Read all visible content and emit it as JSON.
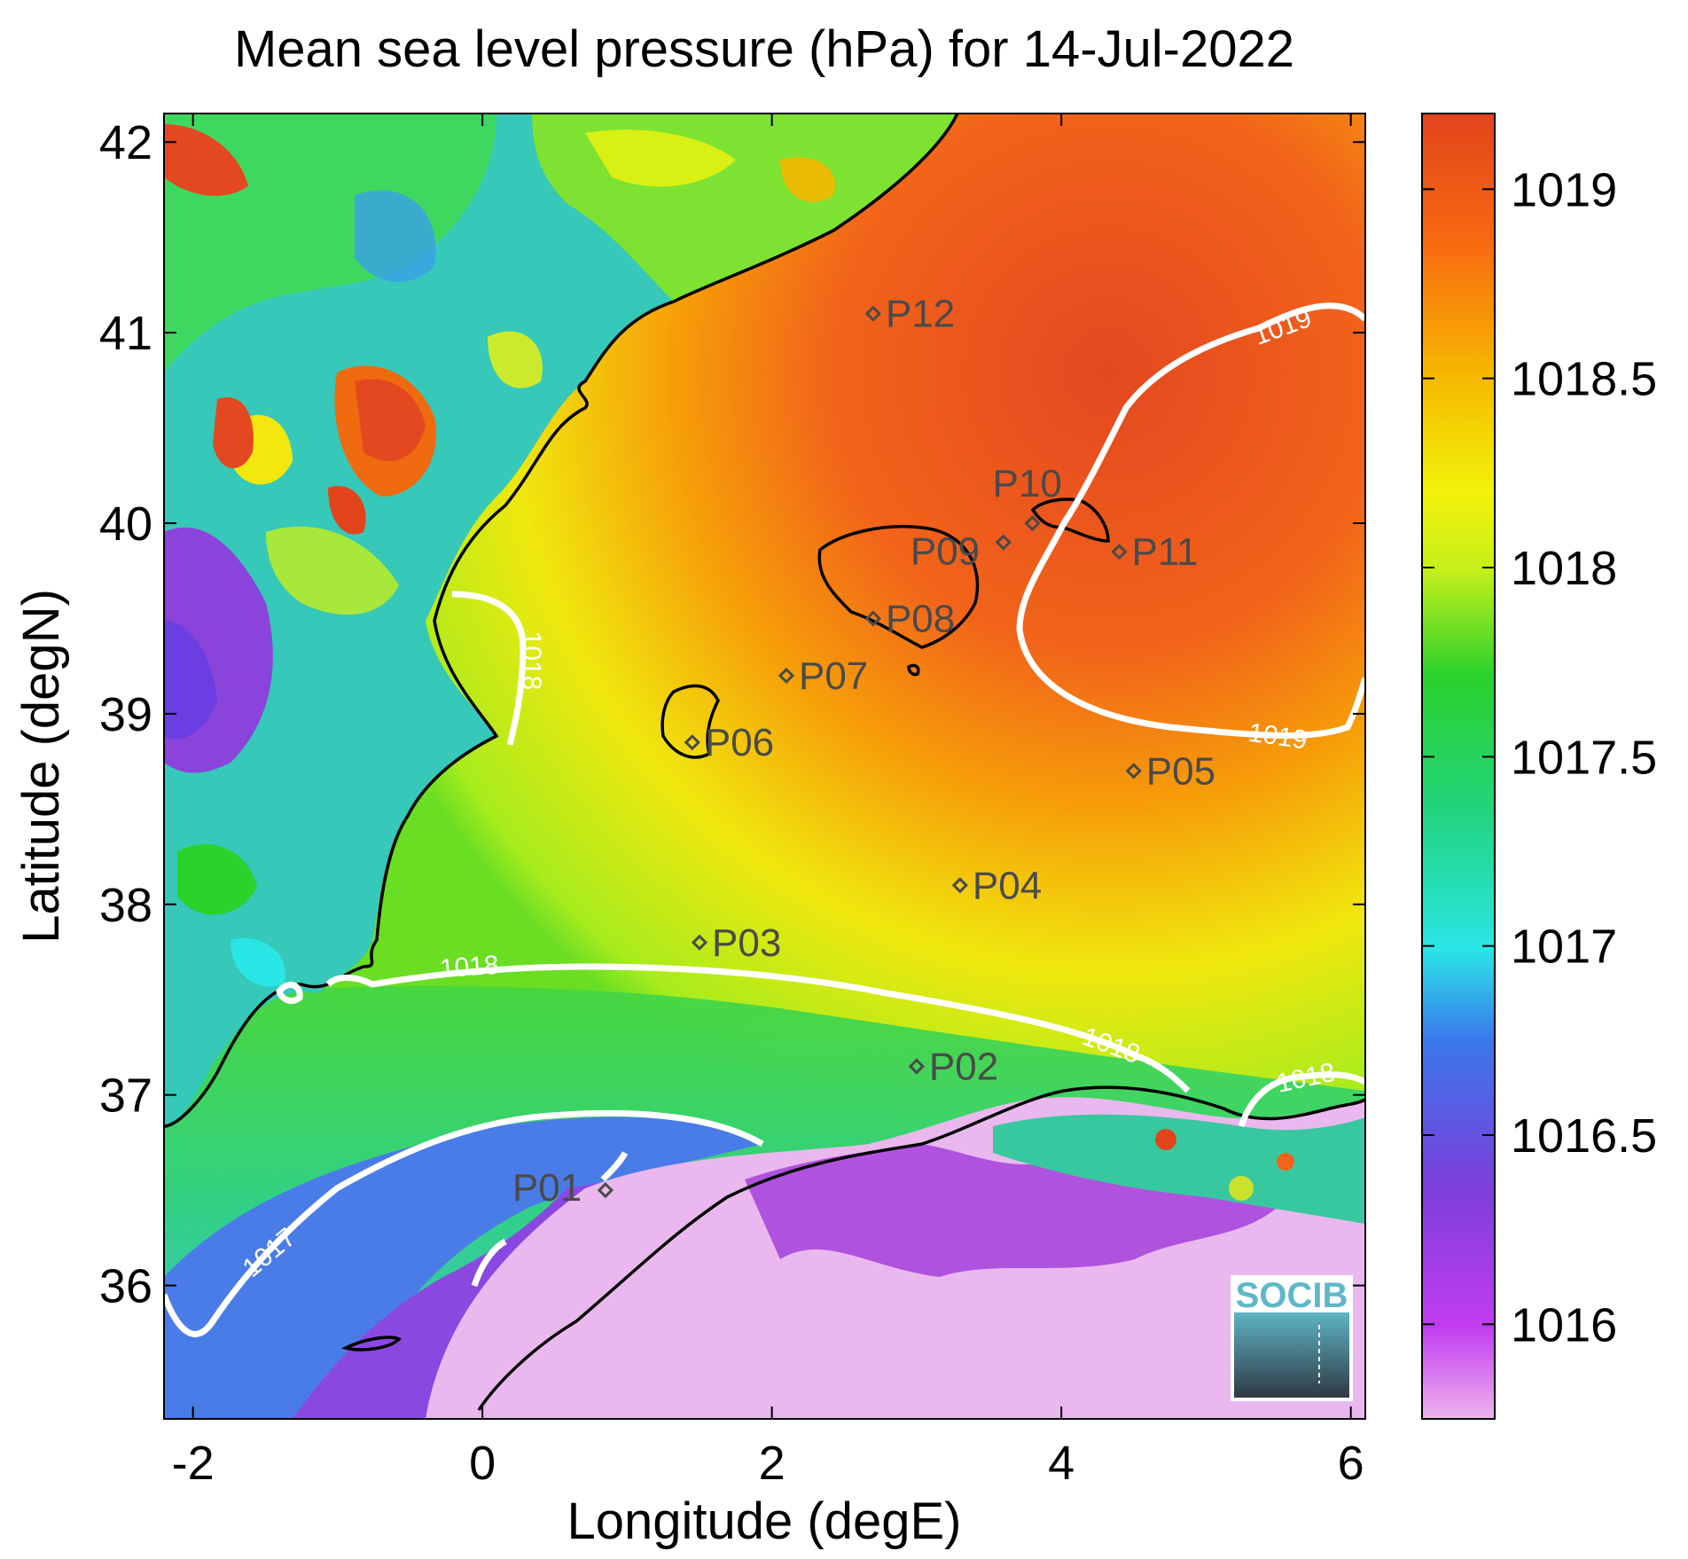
{
  "title": "Mean sea level pressure (hPa) for 14-Jul-2022",
  "x_axis": {
    "label": "Longitude (degE)",
    "ticks": [
      -2,
      0,
      2,
      4,
      6
    ],
    "tick_labels": [
      "-2",
      "0",
      "2",
      "4",
      "6"
    ],
    "range": [
      -2.2,
      6.1
    ]
  },
  "y_axis": {
    "label": "Latitude (degN)",
    "ticks": [
      36,
      37,
      38,
      39,
      40,
      41,
      42
    ],
    "tick_labels": [
      "36",
      "37",
      "38",
      "39",
      "40",
      "41",
      "42"
    ],
    "range": [
      35.3,
      42.15
    ]
  },
  "colorbar": {
    "ticks": [
      1016,
      1016.5,
      1017,
      1017.5,
      1018,
      1018.5,
      1019
    ],
    "tick_labels": [
      "1016",
      "1016.5",
      "1017",
      "1017.5",
      "1018",
      "1018.5",
      "1019"
    ],
    "range": [
      1015.75,
      1019.2
    ],
    "colors": [
      "#eeb4ee",
      "#c23cf0",
      "#7a3fdc",
      "#3a78ec",
      "#2ae6e6",
      "#22d478",
      "#2ad22a",
      "#c4f01a",
      "#f2f20a",
      "#f6b800",
      "#f86a10",
      "#e2441c"
    ]
  },
  "chart_data": {
    "type": "heatmap",
    "variable": "Mean sea level pressure",
    "units": "hPa",
    "date": "14-Jul-2022",
    "contour_levels": [
      "1017",
      "1018",
      "1019"
    ],
    "stations": [
      {
        "name": "P01",
        "lon": 0.85,
        "lat": 36.5
      },
      {
        "name": "P02",
        "lon": 3.0,
        "lat": 37.15
      },
      {
        "name": "P03",
        "lon": 1.5,
        "lat": 37.8
      },
      {
        "name": "P04",
        "lon": 3.3,
        "lat": 38.1
      },
      {
        "name": "P05",
        "lon": 4.5,
        "lat": 38.7
      },
      {
        "name": "P06",
        "lon": 1.45,
        "lat": 38.85
      },
      {
        "name": "P07",
        "lon": 2.1,
        "lat": 39.2
      },
      {
        "name": "P08",
        "lon": 2.7,
        "lat": 39.5
      },
      {
        "name": "P09",
        "lon": 3.6,
        "lat": 39.9
      },
      {
        "name": "P10",
        "lon": 3.8,
        "lat": 40.0
      },
      {
        "name": "P11",
        "lon": 4.4,
        "lat": 39.85
      },
      {
        "name": "P12",
        "lon": 2.7,
        "lat": 41.1
      }
    ]
  },
  "logo": {
    "text": "SOCIB"
  }
}
